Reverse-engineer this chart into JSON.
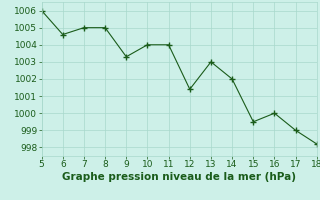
{
  "x": [
    5,
    6,
    7,
    8,
    9,
    10,
    11,
    12,
    13,
    14,
    15,
    16,
    17,
    18
  ],
  "y": [
    1006,
    1004.6,
    1005,
    1005,
    1003.3,
    1004,
    1004,
    1001.4,
    1003,
    1002,
    999.5,
    1000,
    999,
    998.2
  ],
  "xlim": [
    5,
    18
  ],
  "ylim": [
    997.5,
    1006.5
  ],
  "xticks": [
    5,
    6,
    7,
    8,
    9,
    10,
    11,
    12,
    13,
    14,
    15,
    16,
    17,
    18
  ],
  "yticks": [
    998,
    999,
    1000,
    1001,
    1002,
    1003,
    1004,
    1005,
    1006
  ],
  "line_color": "#1a5c1a",
  "marker_color": "#1a5c1a",
  "bg_color": "#cdf0e8",
  "grid_color": "#a8d8cc",
  "xlabel": "Graphe pression niveau de la mer (hPa)",
  "xlabel_color": "#1a5c1a",
  "tick_color": "#1a5c1a",
  "tick_fontsize": 6.5,
  "xlabel_fontsize": 7.5
}
